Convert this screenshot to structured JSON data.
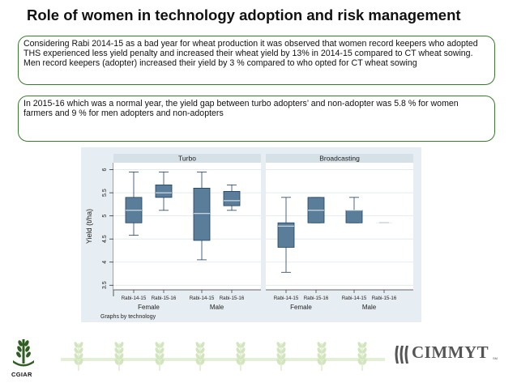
{
  "slide": {
    "title": "Role of women in technology adoption and risk management",
    "callout_1": "Considering Rabi 2014-15 as a bad year for wheat production it was observed that women record keepers who adopted THS experienced less yield penalty and increased their wheat yield by 13% in 2014-15 compared to CT wheat sowing. Men record keepers (adopter) increased their yield by 3 % compared to who opted for CT wheat sowing",
    "callout_2": "In 2015-16 which was a normal year, the yield gap between turbo adopters’ and non-adopter was 5.8 % for women farmers and 9 % for men adopters and non-adopters"
  },
  "chart_data": {
    "type": "boxplot",
    "ylabel": "Yield (t/ha)",
    "ylim": [
      3.4,
      6.15
    ],
    "yticks": [
      3.5,
      4,
      4.5,
      5,
      5.5,
      6
    ],
    "ytick_labels": [
      "3.5",
      "4",
      "4.5",
      "5",
      "5.5",
      "6"
    ],
    "note": "Graphs by technology",
    "panels": [
      {
        "title": "Turbo",
        "groups": [
          {
            "label": "Female",
            "boxes": [
              {
                "season": "Rabi-14-15",
                "min": 4.58,
                "q1": 4.85,
                "median": 5.12,
                "q3": 5.4,
                "max": 5.95
              },
              {
                "season": "Rabi-15-16",
                "min": 5.12,
                "q1": 5.4,
                "median": 5.5,
                "q3": 5.67,
                "max": 5.95
              }
            ]
          },
          {
            "label": "Male",
            "boxes": [
              {
                "season": "Rabi-14-15",
                "min": 4.05,
                "q1": 4.47,
                "median": 5.05,
                "q3": 5.6,
                "max": 5.95
              },
              {
                "season": "Rabi-15-16",
                "min": 5.12,
                "q1": 5.22,
                "median": 5.33,
                "q3": 5.53,
                "max": 5.67
              }
            ]
          }
        ]
      },
      {
        "title": "Broadcasting",
        "groups": [
          {
            "label": "Female",
            "boxes": [
              {
                "season": "Rabi-14-15",
                "min": 3.78,
                "q1": 4.32,
                "median": 4.78,
                "q3": 4.85,
                "max": 5.4
              },
              {
                "season": "Rabi-15-16",
                "min": 4.85,
                "q1": 4.85,
                "median": 5.12,
                "q3": 5.4,
                "max": 5.4
              }
            ]
          },
          {
            "label": "Male",
            "boxes": [
              {
                "season": "Rabi-14-15",
                "min": 4.85,
                "q1": 4.85,
                "median": 5.12,
                "q3": 5.12,
                "max": 5.4
              },
              {
                "season": "Rabi-15-16",
                "min": 4.85,
                "q1": 4.85,
                "median": 4.85,
                "q3": 4.85,
                "max": 4.85
              }
            ]
          }
        ]
      }
    ]
  },
  "logos": {
    "left_text": "CGIAR",
    "right_text": "CIMMYT",
    "right_mark": "SM"
  },
  "colors": {
    "panel_bg": "#e7eef3",
    "plot_bg": "#ffffff",
    "header_bg": "#d6e0e7",
    "box_fill": "#5a7e9a",
    "box_stroke": "#1f4060",
    "callout_border": "#3a7a2e"
  }
}
